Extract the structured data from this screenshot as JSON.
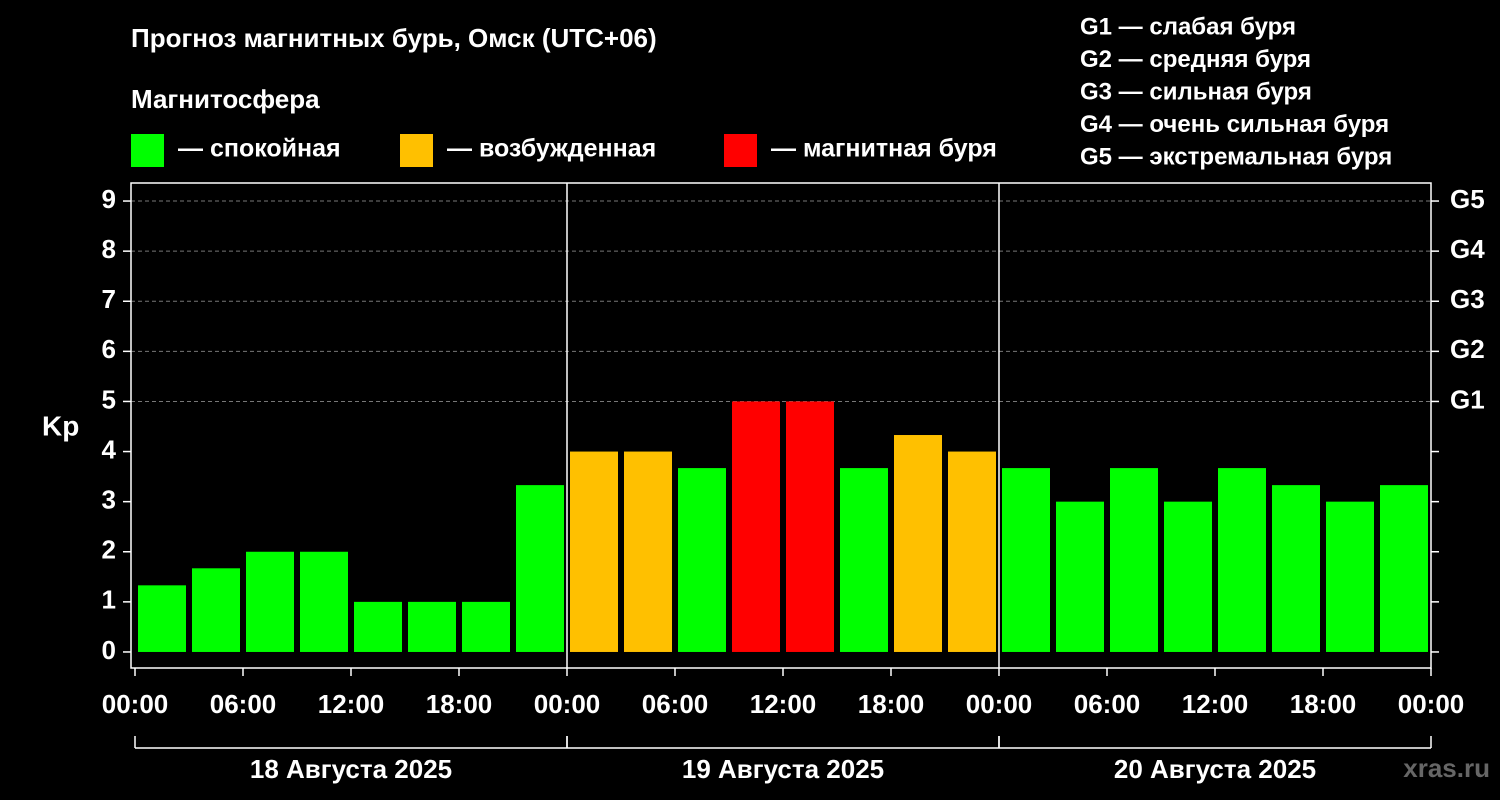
{
  "chart_data": {
    "type": "bar",
    "title": "Прогноз магнитных бурь, Омск (UTC+06)",
    "subtitle": "Магнитосфера",
    "legend": [
      {
        "name": "— спокойная",
        "color": "#00ff00"
      },
      {
        "name": "— возбужденная",
        "color": "#ffc000"
      },
      {
        "name": "— магнитная буря",
        "color": "#ff0000"
      }
    ],
    "scale_notes": [
      "G1 — слабая буря",
      "G2 — средняя буря",
      "G3 — сильная буря",
      "G4 — очень сильная буря",
      "G5 — экстремальная буря"
    ],
    "y_label": "Kp",
    "values": [
      1.33,
      1.67,
      2,
      2,
      1,
      1,
      1,
      3.33,
      4,
      4,
      3.67,
      5,
      5,
      3.67,
      4.33,
      4,
      3.67,
      3,
      3.67,
      3,
      3.67,
      3.33,
      3,
      3.33
    ],
    "colors": [
      "#00ff00",
      "#00ff00",
      "#00ff00",
      "#00ff00",
      "#00ff00",
      "#00ff00",
      "#00ff00",
      "#00ff00",
      "#ffc000",
      "#ffc000",
      "#00ff00",
      "#ff0000",
      "#ff0000",
      "#00ff00",
      "#ffc000",
      "#ffc000",
      "#00ff00",
      "#00ff00",
      "#00ff00",
      "#00ff00",
      "#00ff00",
      "#00ff00",
      "#00ff00",
      "#00ff00"
    ],
    "bar_hours": 3,
    "xlim": [
      0,
      72
    ],
    "xticks": [
      {
        "value": 0,
        "label": "00:00"
      },
      {
        "value": 6,
        "label": "06:00"
      },
      {
        "value": 12,
        "label": "12:00"
      },
      {
        "value": 18,
        "label": "18:00"
      },
      {
        "value": 24,
        "label": "00:00"
      },
      {
        "value": 30,
        "label": "06:00"
      },
      {
        "value": 36,
        "label": "12:00"
      },
      {
        "value": 42,
        "label": "18:00"
      },
      {
        "value": 48,
        "label": "00:00"
      },
      {
        "value": 54,
        "label": "06:00"
      },
      {
        "value": 60,
        "label": "12:00"
      },
      {
        "value": 66,
        "label": "18:00"
      },
      {
        "value": 72,
        "label": "00:00"
      }
    ],
    "days": [
      {
        "start": 0,
        "end": 24,
        "label": "18 Августа 2025"
      },
      {
        "start": 24,
        "end": 48,
        "label": "19 Августа 2025"
      },
      {
        "start": 48,
        "end": 72,
        "label": "20 Августа 2025"
      }
    ],
    "ylim": [
      -0.32,
      9.36
    ],
    "yticks": [
      0,
      1,
      2,
      3,
      4,
      5,
      6,
      7,
      8,
      9
    ],
    "y2ticks": [
      {
        "value": 5,
        "label": "G1"
      },
      {
        "value": 6,
        "label": "G2"
      },
      {
        "value": 7,
        "label": "G3"
      },
      {
        "value": 8,
        "label": "G4"
      },
      {
        "value": 9,
        "label": "G5"
      }
    ],
    "grid": true,
    "watermark": "xras.ru"
  }
}
